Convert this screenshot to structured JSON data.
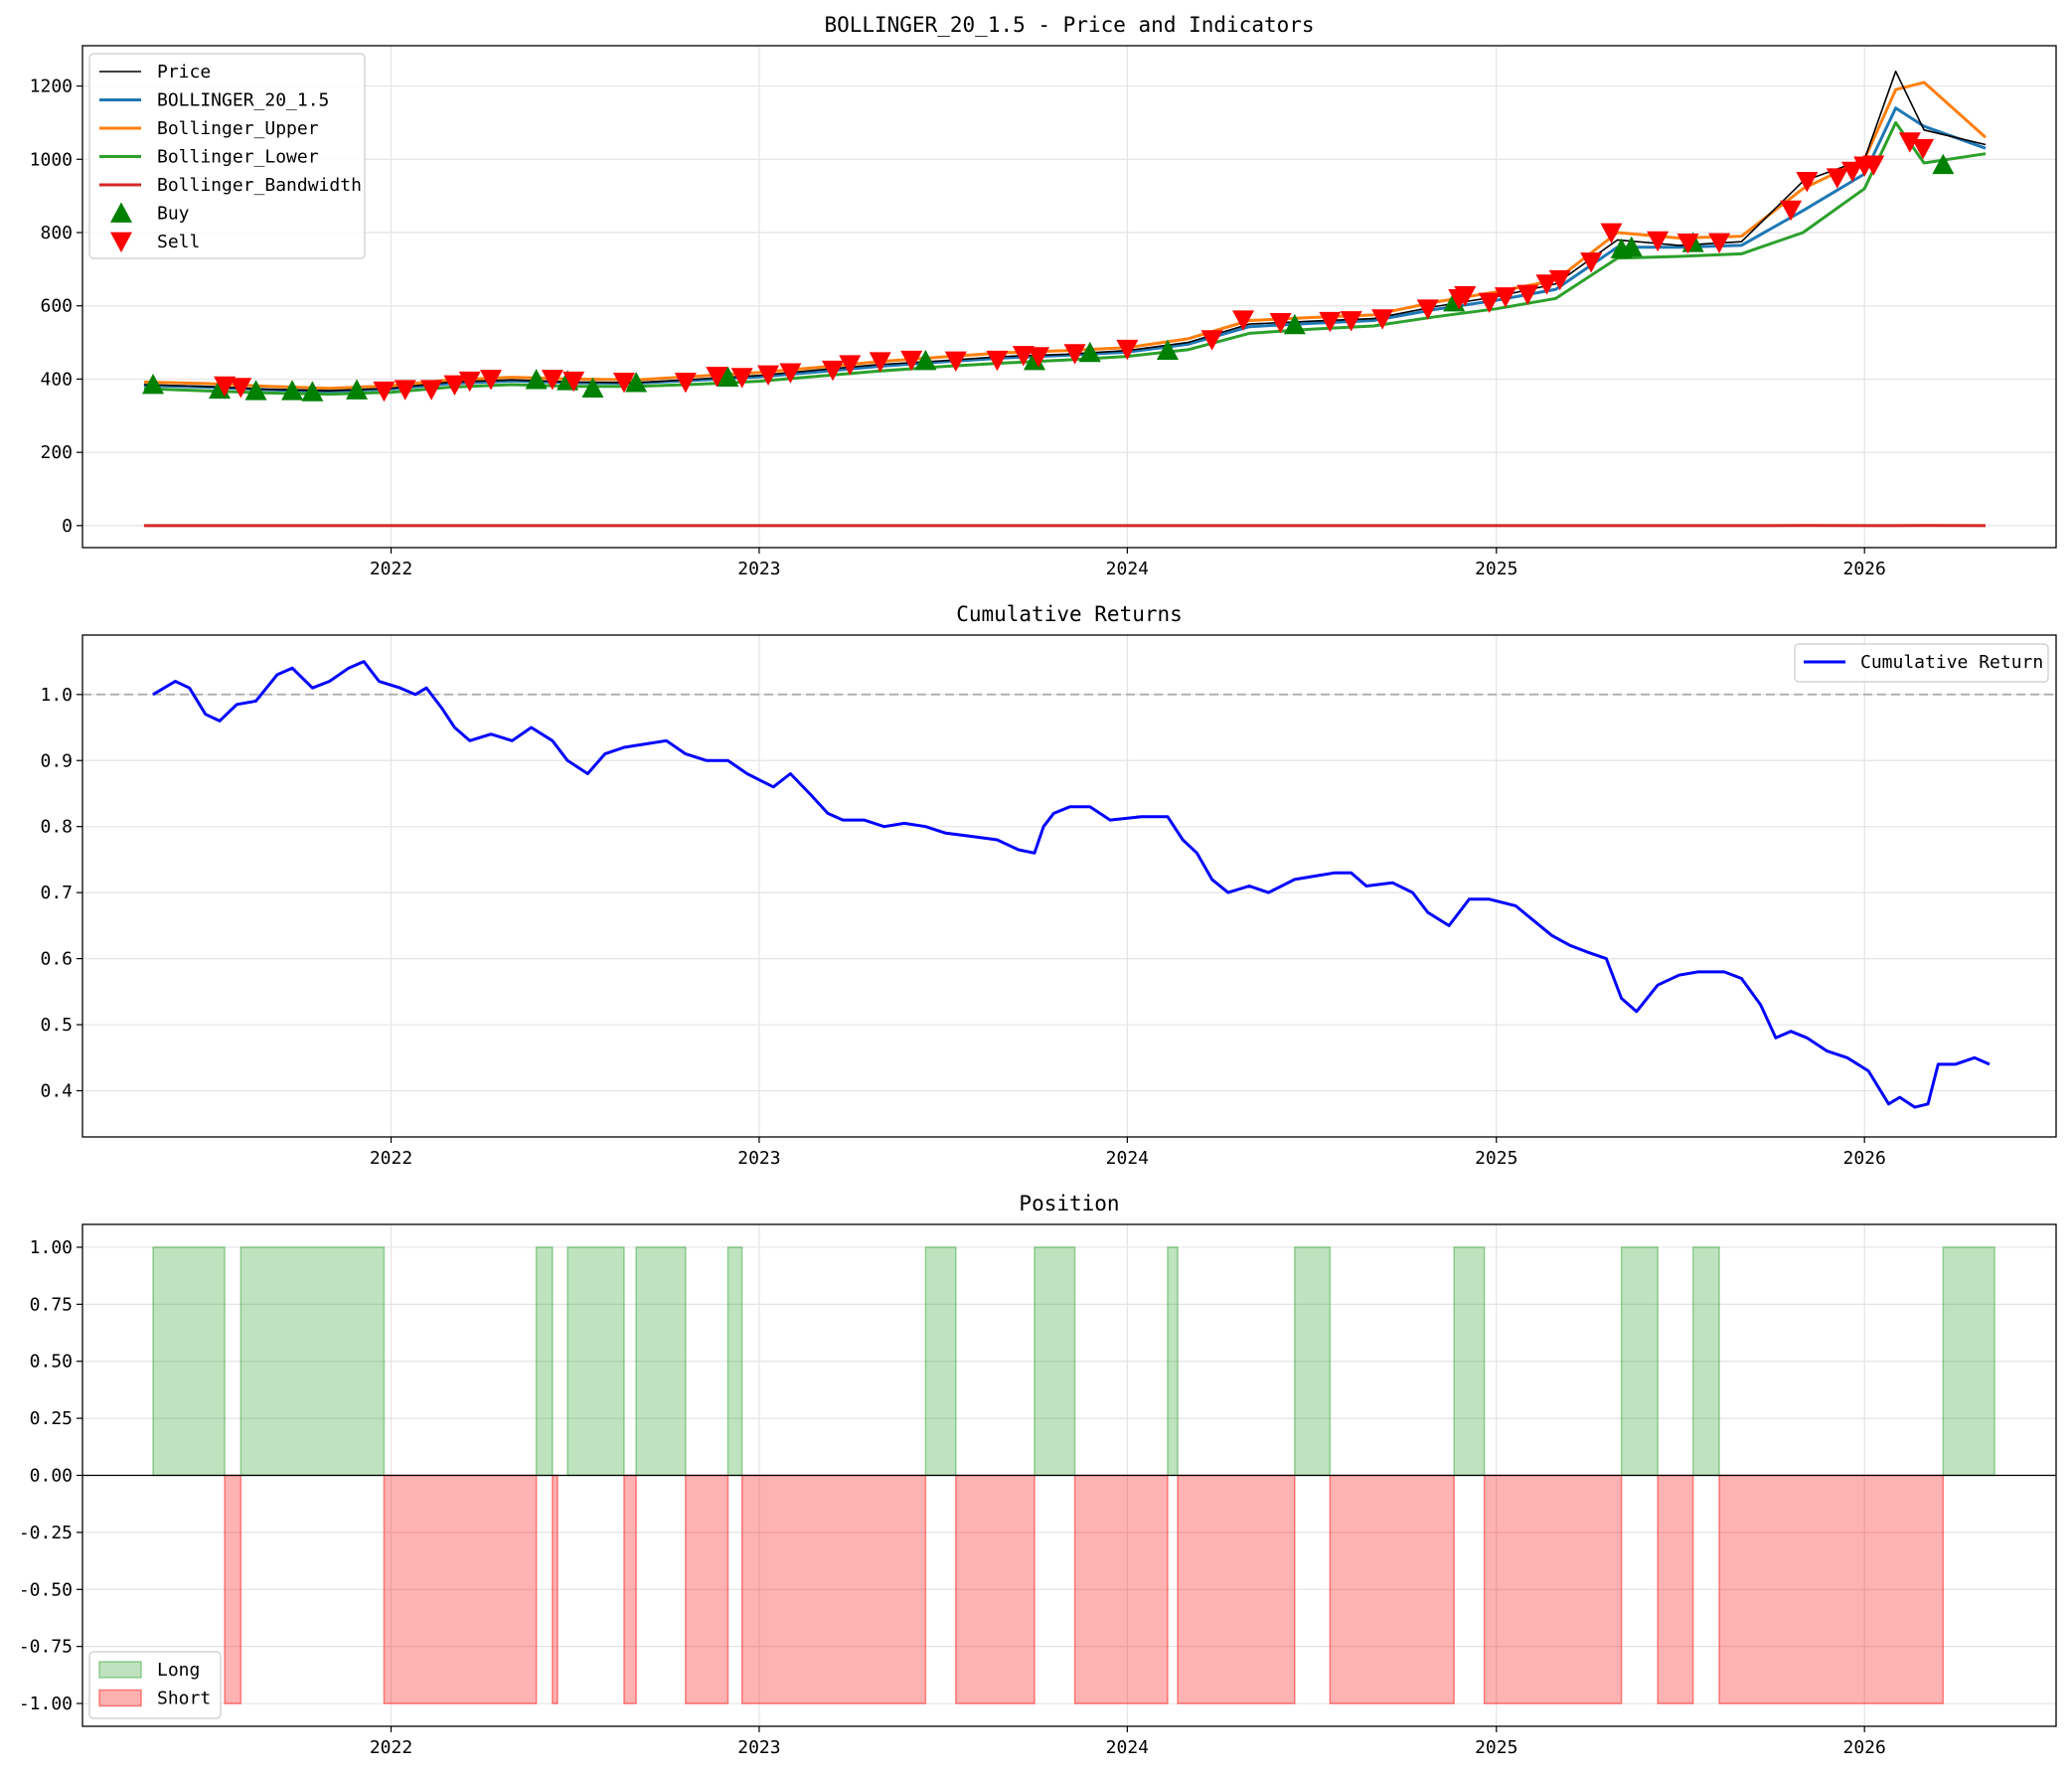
{
  "chart_data": [
    {
      "type": "line",
      "title": "BOLLINGER_20_1.5 - Price and Indicators",
      "xlabel": "",
      "ylabel": "",
      "x_ticks": [
        "2022",
        "2023",
        "2024",
        "2025",
        "2026"
      ],
      "y_ticks": [
        "0",
        "200",
        "400",
        "600",
        "800",
        "1000",
        "1200"
      ],
      "xlim": [
        "2021-03-01",
        "2026-07-10"
      ],
      "ylim": [
        -60,
        1310
      ],
      "grid": true,
      "legend_position": "upper-left",
      "legend": [
        "Price",
        "BOLLINGER_20_1.5",
        "Bollinger_Upper",
        "Bollinger_Lower",
        "Bollinger_Bandwidth",
        "Buy",
        "Sell"
      ],
      "colors": {
        "Price": "#000000",
        "BOLLINGER_20_1.5": "#1f77b4",
        "Bollinger_Upper": "#ff7f0e",
        "Bollinger_Lower": "#2ca02c",
        "Bollinger_Bandwidth": "#d62728",
        "Buy": "#008000",
        "Sell": "#ff0000"
      },
      "x": [
        "2021-05",
        "2021-07",
        "2021-09",
        "2021-11",
        "2022-01",
        "2022-03",
        "2022-05",
        "2022-07",
        "2022-09",
        "2022-11",
        "2023-01",
        "2023-03",
        "2023-05",
        "2023-07",
        "2023-09",
        "2023-11",
        "2024-01",
        "2024-03",
        "2024-05",
        "2024-07",
        "2024-09",
        "2024-11",
        "2025-01",
        "2025-03",
        "2025-05",
        "2025-07",
        "2025-09",
        "2025-11",
        "2026-01",
        "2026-02",
        "2026-03",
        "2026-05"
      ],
      "series": [
        {
          "name": "Price",
          "values": [
            385,
            380,
            372,
            368,
            375,
            392,
            398,
            392,
            390,
            400,
            410,
            425,
            440,
            450,
            462,
            468,
            478,
            500,
            550,
            558,
            565,
            598,
            625,
            660,
            780,
            765,
            775,
            940,
            1000,
            1240,
            1080,
            1040
          ]
        },
        {
          "name": "BOLLINGER_20_1.5",
          "values": [
            383,
            378,
            371,
            367,
            373,
            388,
            395,
            390,
            389,
            397,
            406,
            420,
            435,
            447,
            458,
            465,
            474,
            495,
            543,
            552,
            560,
            590,
            615,
            645,
            760,
            760,
            765,
            860,
            960,
            1140,
            1090,
            1030
          ]
        },
        {
          "name": "Bollinger_Upper",
          "values": [
            392,
            388,
            380,
            375,
            382,
            398,
            405,
            400,
            398,
            408,
            418,
            432,
            448,
            460,
            472,
            478,
            486,
            510,
            560,
            568,
            575,
            610,
            638,
            670,
            800,
            785,
            790,
            920,
            1000,
            1190,
            1210,
            1060
          ]
        },
        {
          "name": "Bollinger_Lower",
          "values": [
            374,
            368,
            362,
            359,
            364,
            378,
            385,
            380,
            380,
            386,
            394,
            408,
            422,
            434,
            444,
            452,
            462,
            480,
            525,
            536,
            545,
            570,
            592,
            620,
            730,
            735,
            742,
            800,
            920,
            1100,
            990,
            1015
          ]
        },
        {
          "name": "Bollinger_Bandwidth",
          "values": [
            0.05,
            0.05,
            0.05,
            0.04,
            0.05,
            0.05,
            0.05,
            0.05,
            0.05,
            0.05,
            0.06,
            0.06,
            0.06,
            0.06,
            0.06,
            0.06,
            0.05,
            0.06,
            0.06,
            0.06,
            0.06,
            0.07,
            0.07,
            0.08,
            0.09,
            0.07,
            0.06,
            0.13,
            0.08,
            0.08,
            0.2,
            0.04
          ]
        }
      ],
      "buy_signals": [
        [
          "2021-05-10",
          385
        ],
        [
          "2021-07-15",
          372
        ],
        [
          "2021-08-20",
          368
        ],
        [
          "2021-09-25",
          368
        ],
        [
          "2021-10-15",
          365
        ],
        [
          "2021-11-28",
          370
        ],
        [
          "2022-05-25",
          398
        ],
        [
          "2022-06-25",
          395
        ],
        [
          "2022-07-20",
          375
        ],
        [
          "2022-09-01",
          390
        ],
        [
          "2022-12-01",
          405
        ],
        [
          "2023-06-15",
          450
        ],
        [
          "2023-10-01",
          450
        ],
        [
          "2023-11-25",
          472
        ],
        [
          "2024-02-10",
          478
        ],
        [
          "2024-06-15",
          548
        ],
        [
          "2024-11-20",
          610
        ],
        [
          "2025-05-05",
          755
        ],
        [
          "2025-05-15",
          760
        ],
        [
          "2025-07-15",
          772
        ],
        [
          "2026-03-20",
          985
        ]
      ],
      "sell_signals": [
        [
          "2021-07-20",
          382
        ],
        [
          "2021-08-05",
          378
        ],
        [
          "2021-12-25",
          368
        ],
        [
          "2022-01-15",
          372
        ],
        [
          "2022-02-10",
          372
        ],
        [
          "2022-03-05",
          385
        ],
        [
          "2022-03-20",
          395
        ],
        [
          "2022-04-10",
          400
        ],
        [
          "2022-06-10",
          400
        ],
        [
          "2022-07-01",
          395
        ],
        [
          "2022-08-20",
          392
        ],
        [
          "2022-10-20",
          392
        ],
        [
          "2022-11-20",
          408
        ],
        [
          "2022-12-15",
          405
        ],
        [
          "2023-01-10",
          412
        ],
        [
          "2023-02-01",
          418
        ],
        [
          "2023-03-15",
          425
        ],
        [
          "2023-04-01",
          440
        ],
        [
          "2023-05-01",
          448
        ],
        [
          "2023-06-01",
          452
        ],
        [
          "2023-07-15",
          450
        ],
        [
          "2023-08-25",
          452
        ],
        [
          "2023-09-20",
          465
        ],
        [
          "2023-10-05",
          462
        ],
        [
          "2023-11-10",
          470
        ],
        [
          "2024-01-01",
          482
        ],
        [
          "2024-03-25",
          508
        ],
        [
          "2024-04-25",
          562
        ],
        [
          "2024-06-01",
          555
        ],
        [
          "2024-07-20",
          558
        ],
        [
          "2024-08-10",
          560
        ],
        [
          "2024-09-10",
          565
        ],
        [
          "2024-10-25",
          592
        ],
        [
          "2024-11-25",
          620
        ],
        [
          "2024-12-01",
          628
        ],
        [
          "2024-12-25",
          610
        ],
        [
          "2025-01-10",
          625
        ],
        [
          "2025-02-01",
          632
        ],
        [
          "2025-02-20",
          660
        ],
        [
          "2025-03-05",
          672
        ],
        [
          "2025-04-05",
          720
        ],
        [
          "2025-04-25",
          800
        ],
        [
          "2025-06-10",
          778
        ],
        [
          "2025-07-10",
          772
        ],
        [
          "2025-08-10",
          773
        ],
        [
          "2025-10-20",
          862
        ],
        [
          "2025-11-05",
          940
        ],
        [
          "2025-12-05",
          950
        ],
        [
          "2025-12-20",
          968
        ],
        [
          "2026-01-01",
          982
        ],
        [
          "2026-01-10",
          985
        ],
        [
          "2026-02-15",
          1048
        ],
        [
          "2026-02-28",
          1030
        ]
      ]
    },
    {
      "type": "line",
      "title": "Cumulative Returns",
      "xlabel": "",
      "ylabel": "",
      "x_ticks": [
        "2022",
        "2023",
        "2024",
        "2025",
        "2026"
      ],
      "y_ticks": [
        "0.4",
        "0.5",
        "0.6",
        "0.7",
        "0.8",
        "0.9",
        "1.0"
      ],
      "xlim": [
        "2021-03-01",
        "2026-07-10"
      ],
      "ylim": [
        0.33,
        1.09
      ],
      "grid": true,
      "legend_position": "upper-right",
      "reference_line": 1.0,
      "colors": {
        "Cumulative Return": "#0000ff",
        "reference": "#b0b0b0"
      },
      "series": [
        {
          "name": "Cumulative Return",
          "x": [
            "2021-05-10",
            "2021-06-01",
            "2021-06-15",
            "2021-07-01",
            "2021-07-15",
            "2021-08-01",
            "2021-08-20",
            "2021-09-10",
            "2021-09-25",
            "2021-10-15",
            "2021-11-01",
            "2021-11-20",
            "2021-12-05",
            "2021-12-20",
            "2022-01-10",
            "2022-01-25",
            "2022-02-05",
            "2022-02-20",
            "2022-03-05",
            "2022-03-20",
            "2022-04-10",
            "2022-05-01",
            "2022-05-20",
            "2022-06-10",
            "2022-06-25",
            "2022-07-15",
            "2022-08-01",
            "2022-08-20",
            "2022-09-10",
            "2022-10-01",
            "2022-10-20",
            "2022-11-10",
            "2022-12-01",
            "2022-12-20",
            "2023-01-15",
            "2023-02-01",
            "2023-02-20",
            "2023-03-10",
            "2023-03-25",
            "2023-04-15",
            "2023-05-05",
            "2023-05-25",
            "2023-06-15",
            "2023-07-05",
            "2023-08-01",
            "2023-08-25",
            "2023-09-15",
            "2023-10-01",
            "2023-10-10",
            "2023-10-20",
            "2023-11-05",
            "2023-11-25",
            "2023-12-15",
            "2024-01-15",
            "2024-02-10",
            "2024-02-25",
            "2024-03-10",
            "2024-03-25",
            "2024-04-10",
            "2024-05-01",
            "2024-05-20",
            "2024-06-15",
            "2024-07-05",
            "2024-07-25",
            "2024-08-10",
            "2024-08-25",
            "2024-09-20",
            "2024-10-10",
            "2024-10-25",
            "2024-11-15",
            "2024-12-05",
            "2024-12-25",
            "2025-01-20",
            "2025-02-05",
            "2025-02-25",
            "2025-03-15",
            "2025-04-01",
            "2025-04-20",
            "2025-05-05",
            "2025-05-20",
            "2025-06-10",
            "2025-07-01",
            "2025-07-20",
            "2025-08-15",
            "2025-09-01",
            "2025-09-20",
            "2025-10-05",
            "2025-10-20",
            "2025-11-05",
            "2025-11-25",
            "2025-12-15",
            "2026-01-05",
            "2026-01-25",
            "2026-02-05",
            "2026-02-20",
            "2026-03-05",
            "2026-03-15",
            "2026-04-01",
            "2026-04-20",
            "2026-05-05"
          ],
          "values": [
            1.0,
            1.02,
            1.01,
            0.97,
            0.96,
            0.985,
            0.99,
            1.03,
            1.04,
            1.01,
            1.02,
            1.04,
            1.05,
            1.02,
            1.01,
            1.0,
            1.01,
            0.98,
            0.95,
            0.93,
            0.94,
            0.93,
            0.95,
            0.93,
            0.9,
            0.88,
            0.91,
            0.92,
            0.925,
            0.93,
            0.91,
            0.9,
            0.9,
            0.88,
            0.86,
            0.88,
            0.85,
            0.82,
            0.81,
            0.81,
            0.8,
            0.805,
            0.8,
            0.79,
            0.785,
            0.78,
            0.765,
            0.76,
            0.8,
            0.82,
            0.83,
            0.83,
            0.81,
            0.815,
            0.815,
            0.78,
            0.76,
            0.72,
            0.7,
            0.71,
            0.7,
            0.72,
            0.725,
            0.73,
            0.73,
            0.71,
            0.715,
            0.7,
            0.67,
            0.65,
            0.69,
            0.69,
            0.68,
            0.66,
            0.635,
            0.62,
            0.61,
            0.6,
            0.54,
            0.52,
            0.56,
            0.575,
            0.58,
            0.58,
            0.57,
            0.53,
            0.48,
            0.49,
            0.48,
            0.46,
            0.45,
            0.43,
            0.38,
            0.39,
            0.375,
            0.38,
            0.44,
            0.44,
            0.45,
            0.44
          ]
        }
      ]
    },
    {
      "type": "area",
      "title": "Position",
      "xlabel": "",
      "ylabel": "",
      "x_ticks": [
        "2022",
        "2023",
        "2024",
        "2025",
        "2026"
      ],
      "y_ticks": [
        "-1.00",
        "-0.75",
        "-0.50",
        "-0.25",
        "0.00",
        "0.25",
        "0.50",
        "0.75",
        "1.00"
      ],
      "xlim": [
        "2021-03-01",
        "2026-07-10"
      ],
      "ylim": [
        -1.1,
        1.1
      ],
      "grid": true,
      "legend_position": "lower-left",
      "colors": {
        "Long": "#2ca02c",
        "Short": "#ff0000",
        "zero_line": "#000000"
      },
      "series": [
        {
          "name": "Long",
          "value": 1,
          "periods": [
            [
              "2021-05-10",
              "2021-07-20"
            ],
            [
              "2021-08-05",
              "2021-12-25"
            ],
            [
              "2022-05-25",
              "2022-06-10"
            ],
            [
              "2022-06-25",
              "2022-08-20"
            ],
            [
              "2022-09-01",
              "2022-10-20"
            ],
            [
              "2022-12-01",
              "2022-12-15"
            ],
            [
              "2023-06-15",
              "2023-07-15"
            ],
            [
              "2023-10-01",
              "2023-11-10"
            ],
            [
              "2024-02-10",
              "2024-02-20"
            ],
            [
              "2024-06-15",
              "2024-07-20"
            ],
            [
              "2024-11-20",
              "2024-12-20"
            ],
            [
              "2025-05-05",
              "2025-06-10"
            ],
            [
              "2025-07-15",
              "2025-08-10"
            ],
            [
              "2026-03-20",
              "2026-05-10"
            ]
          ]
        },
        {
          "name": "Short",
          "value": -1,
          "periods": [
            [
              "2021-07-20",
              "2021-08-05"
            ],
            [
              "2021-12-25",
              "2022-05-25"
            ],
            [
              "2022-06-10",
              "2022-06-15"
            ],
            [
              "2022-08-20",
              "2022-09-01"
            ],
            [
              "2022-10-20",
              "2022-12-01"
            ],
            [
              "2022-12-15",
              "2023-06-15"
            ],
            [
              "2023-07-15",
              "2023-10-01"
            ],
            [
              "2023-11-10",
              "2024-02-10"
            ],
            [
              "2024-02-20",
              "2024-06-15"
            ],
            [
              "2024-07-20",
              "2024-11-20"
            ],
            [
              "2024-12-20",
              "2025-05-05"
            ],
            [
              "2025-06-10",
              "2025-07-15"
            ],
            [
              "2025-08-10",
              "2026-03-20"
            ]
          ]
        }
      ]
    }
  ]
}
